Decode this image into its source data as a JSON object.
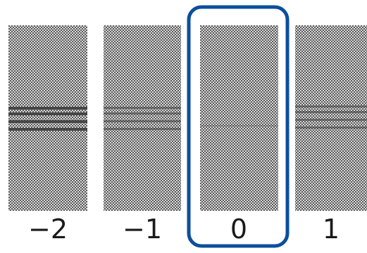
{
  "patterns": [
    {
      "label": "−2",
      "band_strength": "strong",
      "band_count": 4
    },
    {
      "label": "−1",
      "band_strength": "medium",
      "band_count": 4
    },
    {
      "label": "0",
      "band_strength": "faint",
      "band_count": 1
    },
    {
      "label": "1",
      "band_strength": "medium",
      "band_count": 4
    }
  ],
  "selected_label": "0",
  "colors": {
    "selection_border": "#0b4f9c",
    "pattern_dark": "#5a5a5a",
    "pattern_light": "#d9d9d9",
    "band": "#3c3c3c"
  }
}
